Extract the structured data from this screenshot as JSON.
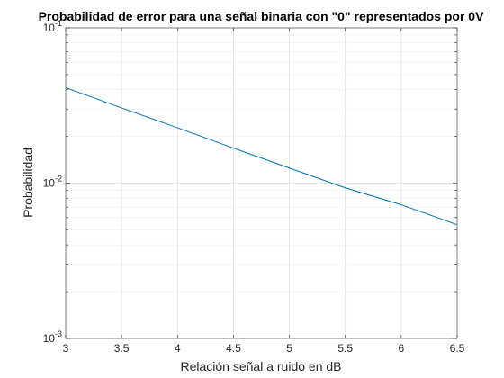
{
  "chart_data": {
    "type": "line",
    "title": "Probabilidad de error para una señal binaria con \"0\" representados por 0V",
    "xlabel": "Relación señal a ruido en dB",
    "ylabel": "Probabilidad",
    "xlim": [
      3,
      6.5
    ],
    "ylim": [
      0.001,
      0.1
    ],
    "yscale": "log",
    "grid": true,
    "minor_grid": true,
    "x_ticks": [
      3,
      3.5,
      4,
      4.5,
      5,
      5.5,
      6,
      6.5
    ],
    "x_tick_labels": [
      "3",
      "3.5",
      "4",
      "4.5",
      "5",
      "5.5",
      "6",
      "6.5"
    ],
    "y_ticks": [
      0.001,
      0.01,
      0.1
    ],
    "y_tick_labels": [
      {
        "base": "10",
        "exp": "-3"
      },
      {
        "base": "10",
        "exp": "-2"
      },
      {
        "base": "10",
        "exp": "-1"
      }
    ],
    "series": [
      {
        "color": "#0072BD",
        "x": [
          3,
          3.5,
          4,
          4.5,
          5,
          5.5,
          6,
          6.5
        ],
        "y": [
          0.0412,
          0.0305,
          0.0227,
          0.0168,
          0.0125,
          0.00932,
          0.00725,
          0.0054
        ]
      }
    ]
  }
}
